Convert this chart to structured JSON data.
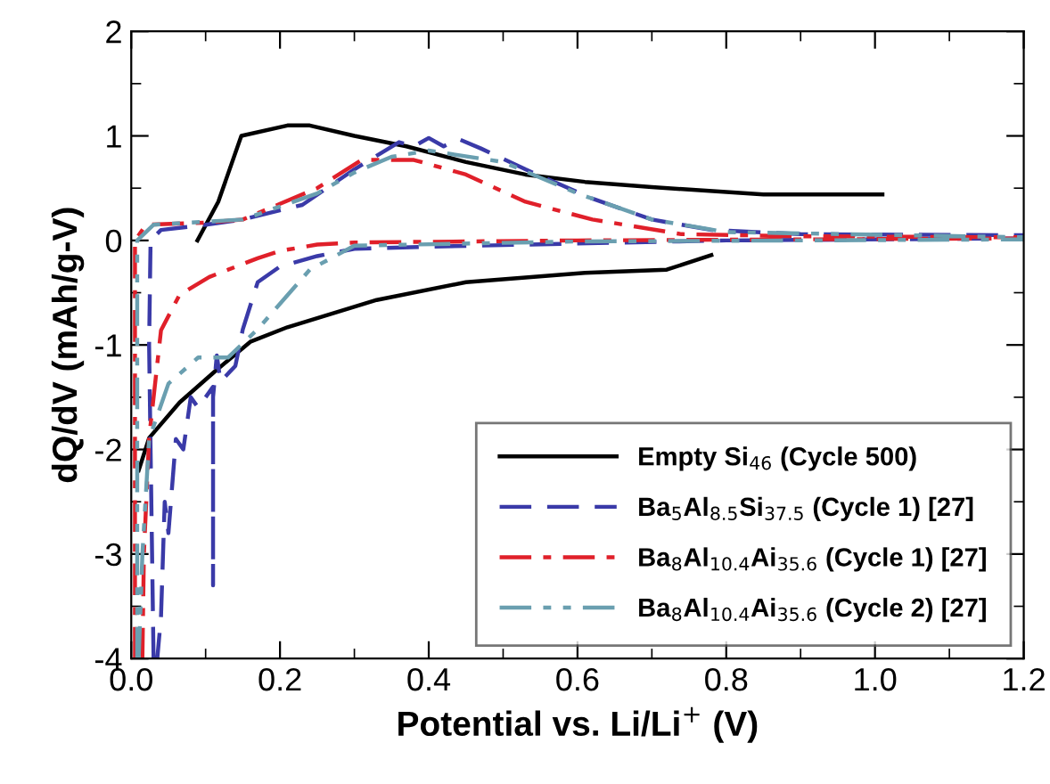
{
  "chart_data": {
    "type": "line",
    "xlabel": "Potential vs. Li/Li$^{+}$ (V)",
    "ylabel": "dQ/dV (mAh/g-V)",
    "xlim": [
      0,
      1.2
    ],
    "ylim": [
      -4,
      2
    ],
    "xticks": [
      {
        "value": 0,
        "label": "0.0"
      },
      0.2,
      0.4,
      0.6,
      0.8,
      {
        "value": 1,
        "label": "1.0"
      },
      1.2
    ],
    "yticks": [
      -4,
      -3,
      -2,
      -1,
      0,
      1,
      2
    ],
    "grid": false,
    "legend": "bottom right",
    "marker": "none",
    "series": [
      {
        "name": "Empty Si$_{46}$ (Cycle 500)",
        "color": "#000000",
        "line_style": "solid",
        "x": [
          0.089,
          0.117,
          0.148,
          0.21,
          0.24,
          0.3,
          0.37,
          0.45,
          0.53,
          0.61,
          0.7,
          0.85,
          1.01,
          null,
          0.01,
          0.024,
          0.065,
          0.113,
          0.16,
          0.21,
          0.33,
          0.45,
          0.61,
          0.72,
          0.78
        ],
        "values": [
          0.0,
          0.37,
          1.0,
          1.1,
          1.1,
          1.0,
          0.9,
          0.75,
          0.63,
          0.56,
          0.51,
          0.44,
          0.44,
          null,
          -2.2,
          -1.89,
          -1.55,
          -1.25,
          -0.97,
          -0.83,
          -0.57,
          -0.4,
          -0.31,
          -0.28,
          -0.14
        ]
      },
      {
        "name": "Ba$_{5}$Al$_{8.5}$Si$_{37.5}$ (Cycle 1) [27]",
        "color": "#3a3aa8",
        "line_style": "dashed",
        "x": [
          0.03,
          0.024,
          0.026,
          0.04,
          0.1,
          0.15,
          0.23,
          0.3,
          0.36,
          0.38,
          0.4,
          0.42,
          0.44,
          0.47,
          0.53,
          0.62,
          0.7,
          0.78,
          0.9,
          1.2,
          1.2,
          0.8,
          0.6,
          0.4,
          0.3,
          0.25,
          0.2,
          0.17,
          0.15,
          0.14,
          0.12,
          0.115,
          0.11,
          0.11,
          0.11,
          0.09,
          0.08,
          0.07,
          0.06,
          0.05,
          0.045,
          0.04,
          0.035
        ],
        "values": [
          -4.0,
          -1.0,
          0.0,
          0.1,
          0.15,
          0.2,
          0.34,
          0.68,
          0.94,
          0.9,
          0.98,
          0.9,
          0.97,
          0.88,
          0.68,
          0.4,
          0.2,
          0.1,
          0.06,
          0.05,
          0.02,
          0.0,
          -0.03,
          -0.06,
          -0.08,
          -0.15,
          -0.25,
          -0.4,
          -0.85,
          -1.2,
          -1.35,
          -1.1,
          -1.5,
          -3.3,
          -1.4,
          -1.6,
          -1.5,
          -2.0,
          -1.9,
          -2.8,
          -2.5,
          -3.6,
          -4.0
        ]
      },
      {
        "name": "Ba$_{8}$Al$_{10.4}$Ai$_{35.6}$ (Cycle 1) [27]",
        "color": "#e0202a",
        "line_style": "dashdot",
        "x": [
          0.005,
          0.005,
          0.02,
          0.1,
          0.15,
          0.2,
          0.25,
          0.31,
          0.38,
          0.45,
          0.53,
          0.62,
          0.74,
          0.9,
          1.2,
          1.2,
          0.6,
          0.3,
          0.25,
          0.2,
          0.17,
          0.105,
          0.065,
          0.04,
          0.024,
          0.017,
          0.015
        ],
        "values": [
          -4.0,
          0.0,
          0.15,
          0.17,
          0.2,
          0.35,
          0.5,
          0.77,
          0.77,
          0.63,
          0.37,
          0.2,
          0.06,
          0.04,
          0.03,
          0.02,
          0.0,
          -0.02,
          -0.04,
          -0.1,
          -0.17,
          -0.35,
          -0.52,
          -0.86,
          -1.89,
          -3.0,
          -4.0
        ]
      },
      {
        "name": "Ba$_{8}$Al$_{10.4}$Ai$_{35.6}$ (Cycle 2) [27]",
        "color": "#6a9fb0",
        "line_style": "dashdotdot",
        "x": [
          0.008,
          0.008,
          0.03,
          0.15,
          0.25,
          0.3,
          0.35,
          0.4,
          0.5,
          0.6,
          0.7,
          0.8,
          1.2,
          1.2,
          0.6,
          0.3,
          0.24,
          0.17,
          0.13,
          0.09,
          0.05,
          0.024,
          0.015,
          0.01
        ],
        "values": [
          -4.0,
          0.0,
          0.15,
          0.2,
          0.45,
          0.65,
          0.8,
          0.86,
          0.75,
          0.45,
          0.2,
          0.08,
          0.03,
          0.01,
          -0.01,
          -0.05,
          -0.28,
          -0.85,
          -1.12,
          -1.12,
          -1.37,
          -1.9,
          -3.0,
          -4.0
        ]
      }
    ]
  }
}
